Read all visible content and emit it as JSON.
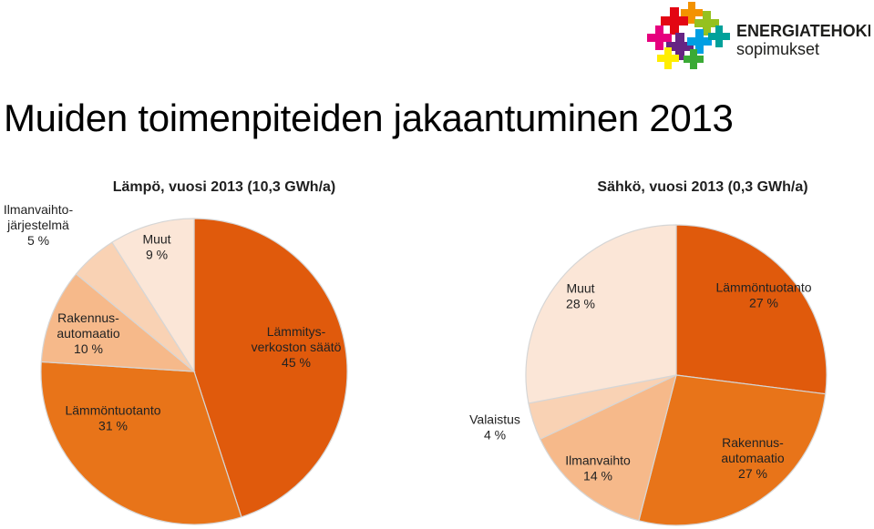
{
  "title": "Muiden toimenpiteiden jakaantuminen 2013",
  "logo": {
    "line1": "ENERGIATEHOKKUUS-",
    "line2": "sopimukset"
  },
  "colors": {
    "dark": "#e05a0c",
    "medium": "#e87419",
    "light": "#f6b98a",
    "lighter": "#f9d2b4",
    "lightest": "#fbe6d7",
    "edge": "#d6d6d6"
  },
  "chart_data": [
    {
      "type": "pie",
      "title": "Lämpö, vuosi 2013 (10,3 GWh/a)",
      "slices": [
        {
          "label_lines": [
            "Lämmitys-",
            "verkoston säätö",
            "45 %"
          ],
          "value": 45,
          "color": "#e05a0c"
        },
        {
          "label_lines": [
            "Lämmöntuotanto",
            "31 %"
          ],
          "value": 31,
          "color": "#e87419"
        },
        {
          "label_lines": [
            "Rakennus-",
            "automaatio",
            "10 %"
          ],
          "value": 10,
          "color": "#f6b98a"
        },
        {
          "label_lines": [
            "Ilmanvaihto-",
            "järjestelmä",
            "5 %"
          ],
          "value": 5,
          "color": "#f9d2b4"
        },
        {
          "label_lines": [
            "Muut",
            "9 %"
          ],
          "value": 9,
          "color": "#fbe6d7"
        }
      ]
    },
    {
      "type": "pie",
      "title": "Sähkö, vuosi 2013 (0,3 GWh/a)",
      "slices": [
        {
          "label_lines": [
            "Lämmöntuotanto",
            "27 %"
          ],
          "value": 27,
          "color": "#e05a0c"
        },
        {
          "label_lines": [
            "Rakennus-",
            "automaatio",
            "27 %"
          ],
          "value": 27,
          "color": "#e87419"
        },
        {
          "label_lines": [
            "Ilmanvaihto",
            "14 %"
          ],
          "value": 14,
          "color": "#f6b98a"
        },
        {
          "label_lines": [
            "Valaistus",
            "4 %"
          ],
          "value": 4,
          "color": "#f9d2b4"
        },
        {
          "label_lines": [
            "Muut",
            "28 %"
          ],
          "value": 28,
          "color": "#fbe6d7"
        }
      ]
    }
  ]
}
